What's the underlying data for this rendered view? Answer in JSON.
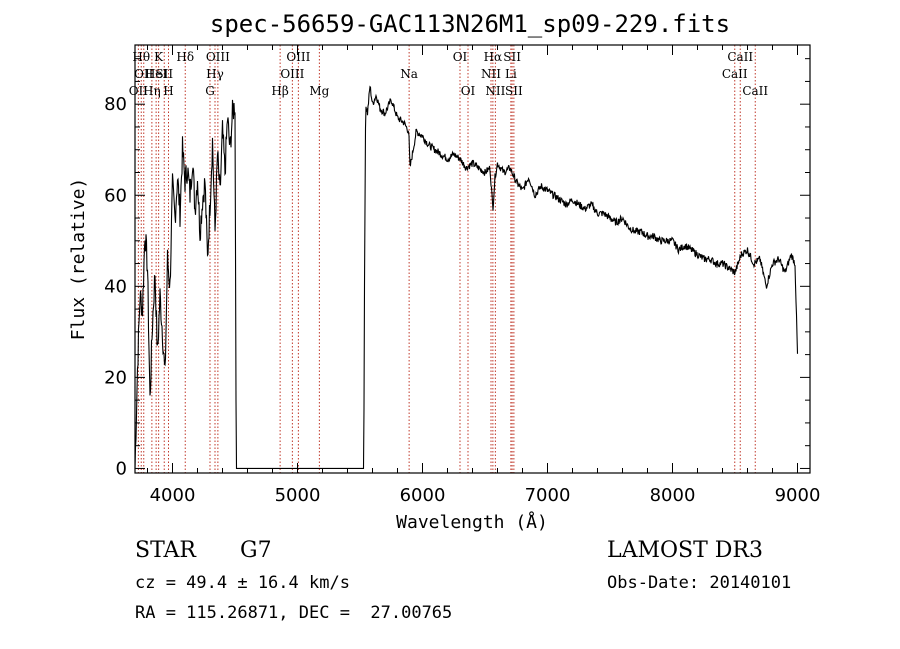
{
  "chart_data": {
    "type": "line",
    "title": "spec-56659-GAC113N26M1_sp09-229.fits",
    "xlabel": "Wavelength (Å)",
    "ylabel": "Flux (relative)",
    "xlim": [
      3700,
      9100
    ],
    "ylim": [
      -1,
      93
    ],
    "x_ticks": [
      4000,
      5000,
      6000,
      7000,
      8000,
      9000
    ],
    "y_ticks": [
      0,
      20,
      40,
      60,
      80
    ],
    "series": [
      {
        "name": "flux",
        "gaps": [
          [
            4510,
            5530
          ]
        ],
        "x": [
          3700,
          3720,
          3740,
          3760,
          3780,
          3800,
          3820,
          3840,
          3860,
          3880,
          3900,
          3920,
          3940,
          3960,
          3980,
          4000,
          4020,
          4040,
          4060,
          4080,
          4100,
          4120,
          4140,
          4160,
          4180,
          4200,
          4220,
          4240,
          4260,
          4280,
          4300,
          4320,
          4340,
          4360,
          4380,
          4400,
          4420,
          4440,
          4460,
          4480,
          4500,
          4505,
          4510,
          5530,
          5535,
          5545,
          5560,
          5580,
          5600,
          5630,
          5660,
          5700,
          5750,
          5800,
          5850,
          5890,
          5900,
          5950,
          6000,
          6050,
          6100,
          6150,
          6200,
          6250,
          6300,
          6350,
          6400,
          6450,
          6500,
          6540,
          6563,
          6580,
          6600,
          6650,
          6700,
          6750,
          6800,
          6850,
          6900,
          6950,
          7000,
          7050,
          7100,
          7150,
          7200,
          7250,
          7300,
          7350,
          7400,
          7450,
          7500,
          7550,
          7600,
          7650,
          7700,
          7750,
          7800,
          7850,
          7900,
          7950,
          8000,
          8050,
          8100,
          8150,
          8200,
          8250,
          8300,
          8350,
          8400,
          8450,
          8500,
          8550,
          8600,
          8650,
          8700,
          8750,
          8800,
          8850,
          8900,
          8950,
          8980,
          9000
        ],
        "y": [
          0,
          22,
          38,
          35,
          52,
          44,
          15,
          32,
          43,
          25,
          38,
          30,
          20,
          46,
          40,
          62,
          55,
          64,
          56,
          70,
          63,
          66,
          60,
          68,
          57,
          64,
          52,
          59,
          63,
          46,
          58,
          72,
          52,
          69,
          60,
          74,
          65,
          77,
          70,
          78,
          80,
          40,
          0,
          0,
          35,
          80,
          78,
          84,
          80,
          82,
          79,
          78,
          81,
          77,
          76,
          74,
          66,
          74,
          73,
          71,
          70,
          69,
          68,
          69,
          68,
          66,
          67,
          66,
          65,
          66,
          57,
          64,
          67,
          65,
          66,
          63,
          61,
          64,
          60,
          62,
          61,
          60,
          59,
          58,
          59,
          58,
          57,
          58,
          56,
          56,
          55,
          54,
          55,
          53,
          52,
          52,
          51,
          51,
          50,
          50,
          50,
          48,
          49,
          48,
          47,
          46,
          46,
          45,
          45,
          44,
          43,
          47,
          48,
          45,
          46,
          40,
          45,
          46,
          43,
          47,
          45,
          25
        ]
      }
    ],
    "lines": [
      {
        "wavelength": 3727,
        "label": "OII",
        "row": 3
      },
      {
        "wavelength": 3750,
        "label": "Hθ",
        "row": 1
      },
      {
        "wavelength": 3770,
        "label": "OII",
        "row": 2
      },
      {
        "wavelength": 3835,
        "label": "Hη",
        "row": 3
      },
      {
        "wavelength": 3869,
        "label": "HeI",
        "row": 2
      },
      {
        "wavelength": 3889,
        "label": "K",
        "row": 1
      },
      {
        "wavelength": 3934,
        "label": "SII",
        "row": 2
      },
      {
        "wavelength": 3968,
        "label": "H",
        "row": 3
      },
      {
        "wavelength": 4102,
        "label": "Hδ",
        "row": 1
      },
      {
        "wavelength": 4300,
        "label": "G",
        "row": 3
      },
      {
        "wavelength": 4340,
        "label": "Hγ",
        "row": 2
      },
      {
        "wavelength": 4363,
        "label": "OIII",
        "row": 1
      },
      {
        "wavelength": 4861,
        "label": "Hβ",
        "row": 3
      },
      {
        "wavelength": 4959,
        "label": "OIII",
        "row": 2
      },
      {
        "wavelength": 5007,
        "label": "OIII",
        "row": 1
      },
      {
        "wavelength": 5175,
        "label": "Mg",
        "row": 3
      },
      {
        "wavelength": 5893,
        "label": "Na",
        "row": 2
      },
      {
        "wavelength": 6300,
        "label": "OI",
        "row": 1
      },
      {
        "wavelength": 6364,
        "label": "OI",
        "row": 3
      },
      {
        "wavelength": 6548,
        "label": "NII",
        "row": 2
      },
      {
        "wavelength": 6563,
        "label": "Hα",
        "row": 1
      },
      {
        "wavelength": 6583,
        "label": "NII",
        "row": 3
      },
      {
        "wavelength": 6707,
        "label": "Li",
        "row": 2
      },
      {
        "wavelength": 6717,
        "label": "SII",
        "row": 1
      },
      {
        "wavelength": 6731,
        "label": "SII",
        "row": 3
      },
      {
        "wavelength": 8498,
        "label": "CaII",
        "row": 2
      },
      {
        "wavelength": 8542,
        "label": "CaII",
        "row": 1
      },
      {
        "wavelength": 8662,
        "label": "CaII",
        "row": 3
      }
    ]
  },
  "info": {
    "class": "STAR",
    "subclass": "G7",
    "survey": "LAMOST DR3",
    "redshift": "cz = 49.4 ± 16.4 km/s",
    "obs_date": "Obs-Date: 20140101",
    "coords": "RA = 115.26871, DEC =  27.00765"
  }
}
